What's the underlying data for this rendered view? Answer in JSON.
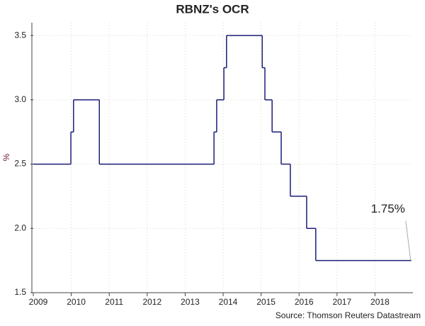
{
  "chart_data": {
    "type": "line",
    "step": "post",
    "title": "RBNZ's OCR",
    "y_label": "%",
    "source": "Source: Thomson Reuters Datastream",
    "annotation": "1.75%",
    "x": [
      2009.0,
      2009.99,
      2010.06,
      2010.74,
      2013.76,
      2013.83,
      2014.02,
      2014.09,
      2015.03,
      2015.1,
      2015.29,
      2015.53,
      2015.77,
      2016.2,
      2016.44,
      2018.94
    ],
    "series": [
      {
        "name": "OCR",
        "color": "#1c1c7a",
        "values": [
          2.5,
          2.75,
          3.0,
          2.5,
          2.75,
          3.0,
          3.25,
          3.5,
          3.25,
          3.0,
          2.75,
          2.5,
          2.25,
          2.0,
          1.75,
          1.75
        ]
      }
    ],
    "xlim": [
      2009.0,
      2019.0
    ],
    "xticks": [
      2009,
      2010,
      2011,
      2012,
      2013,
      2014,
      2015,
      2016,
      2017,
      2018
    ],
    "ylim": [
      1.5,
      3.6
    ],
    "yticks": [
      1.5,
      {
        "value": 2.0,
        "label": "2.0"
      },
      2.5,
      {
        "value": 3.0,
        "label": "3.0"
      },
      3.5
    ],
    "grid": true
  }
}
